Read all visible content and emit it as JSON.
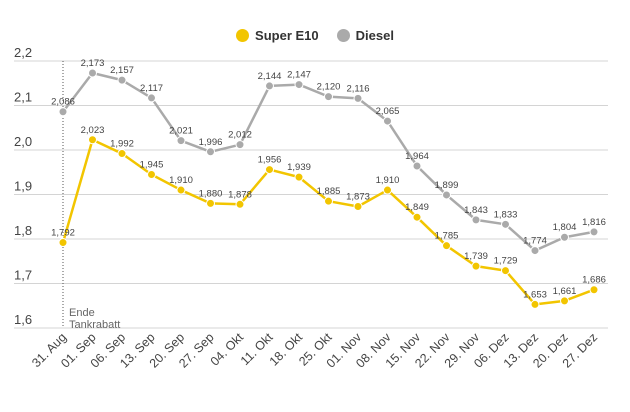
{
  "chart_data": {
    "type": "line",
    "categories": [
      "31. Aug",
      "01. Sep",
      "06. Sep",
      "13. Sep",
      "20. Sep",
      "27. Sep",
      "04. Okt",
      "11. Okt",
      "18. Okt",
      "25. Okt",
      "01. Nov",
      "08. Nov",
      "15. Nov",
      "22. Nov",
      "29. Nov",
      "06. Dez",
      "13. Dez",
      "20. Dez",
      "27. Dez"
    ],
    "series": [
      {
        "name": "Super E10",
        "color": "#f2c500",
        "values": [
          1.792,
          2.023,
          1.992,
          1.945,
          1.91,
          1.88,
          1.878,
          1.956,
          1.939,
          1.885,
          1.873,
          1.91,
          1.849,
          1.785,
          1.739,
          1.729,
          1.653,
          1.661,
          1.686
        ],
        "labels": [
          "1,792",
          "2,023",
          "1,992",
          "1,945",
          "1,910",
          "1,880",
          "1,878",
          "1,956",
          "1,939",
          "1,885",
          "1,873",
          "1,910",
          "1,849",
          "1,785",
          "1,739",
          "1,729",
          "1,653",
          "1,661",
          "1,686"
        ]
      },
      {
        "name": "Diesel",
        "color": "#aaaaaa",
        "values": [
          2.086,
          2.173,
          2.157,
          2.117,
          2.021,
          1.996,
          2.012,
          2.144,
          2.147,
          2.12,
          2.116,
          2.065,
          1.964,
          1.899,
          1.843,
          1.833,
          1.774,
          1.804,
          1.816
        ],
        "labels": [
          "2,086",
          "2,173",
          "2,157",
          "2,117",
          "2,021",
          "1,996",
          "2,012",
          "2,144",
          "2,147",
          "2,120",
          "2,116",
          "2,065",
          "1,964",
          "1,899",
          "1,843",
          "1,833",
          "1,774",
          "1,804",
          "1,816"
        ]
      }
    ],
    "yticks": [
      1.6,
      1.7,
      1.8,
      1.9,
      2.0,
      2.1,
      2.2
    ],
    "ytick_labels": [
      "1,6",
      "1,7",
      "1,8",
      "1,9",
      "2,0",
      "2,1",
      "2,2"
    ],
    "ylim": [
      1.6,
      2.2
    ],
    "grid": true,
    "legend": "top-center",
    "annotation": {
      "lines": [
        "Ende",
        "Tankrabatt"
      ],
      "at_category": "31. Aug"
    }
  }
}
